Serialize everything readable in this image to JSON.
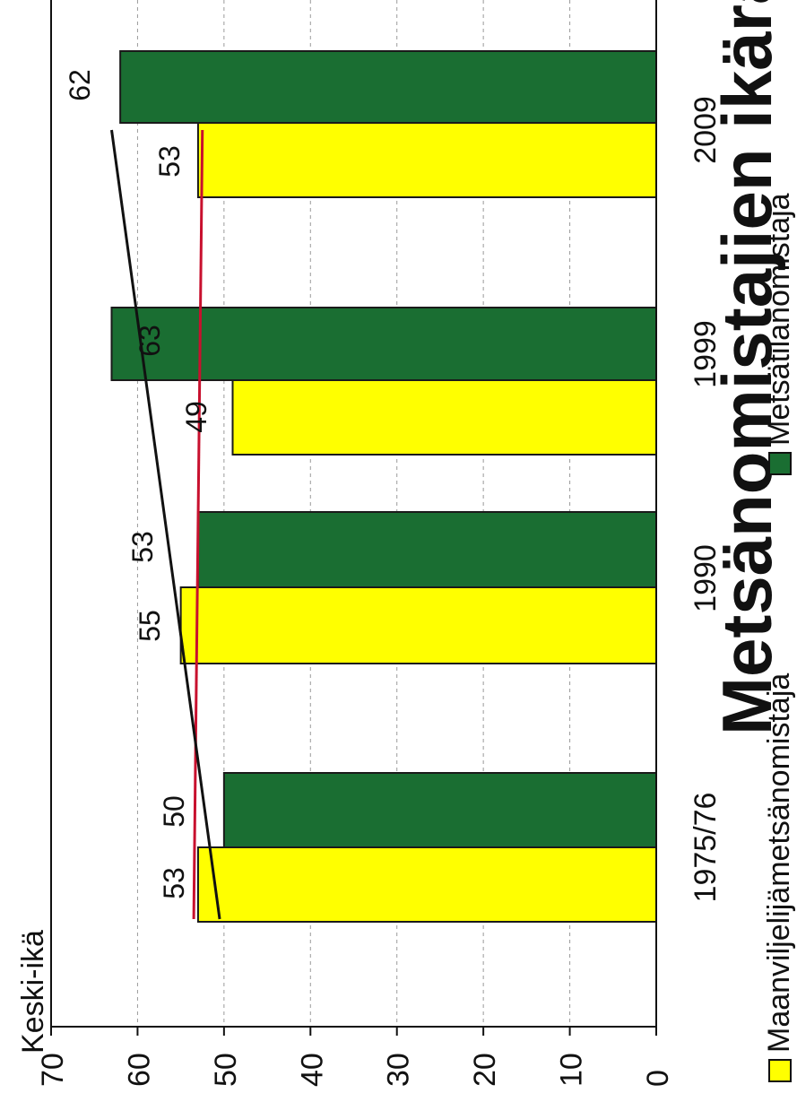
{
  "chart_data": {
    "type": "bar",
    "orientation": "rotated-90",
    "title": "Metsänomistajien ikärakenne",
    "ylabel": "Keski-ikä",
    "ylim": [
      0,
      70
    ],
    "yticks": [
      0,
      10,
      20,
      30,
      40,
      50,
      60,
      70
    ],
    "grid": true,
    "legend_position": "bottom",
    "categories": [
      "1975/76",
      "1990",
      "1999",
      "2009"
    ],
    "series": [
      {
        "name": "Maanviljelijämetsänomistaja",
        "color": "#ffff00",
        "values": [
          53,
          55,
          49,
          53
        ]
      },
      {
        "name": "Metsätilanomistaja",
        "color": "#1a6e32",
        "values": [
          50,
          53,
          63,
          62
        ]
      }
    ],
    "trend_lines": [
      {
        "color": "#c8102e",
        "from": 53.5,
        "to": 52.5
      },
      {
        "color": "#111111",
        "from": 50.5,
        "to": 63.0
      }
    ],
    "data_labels": [
      [
        "53",
        "55",
        "49",
        "53"
      ],
      [
        "50",
        "53",
        "63",
        "62"
      ]
    ]
  }
}
